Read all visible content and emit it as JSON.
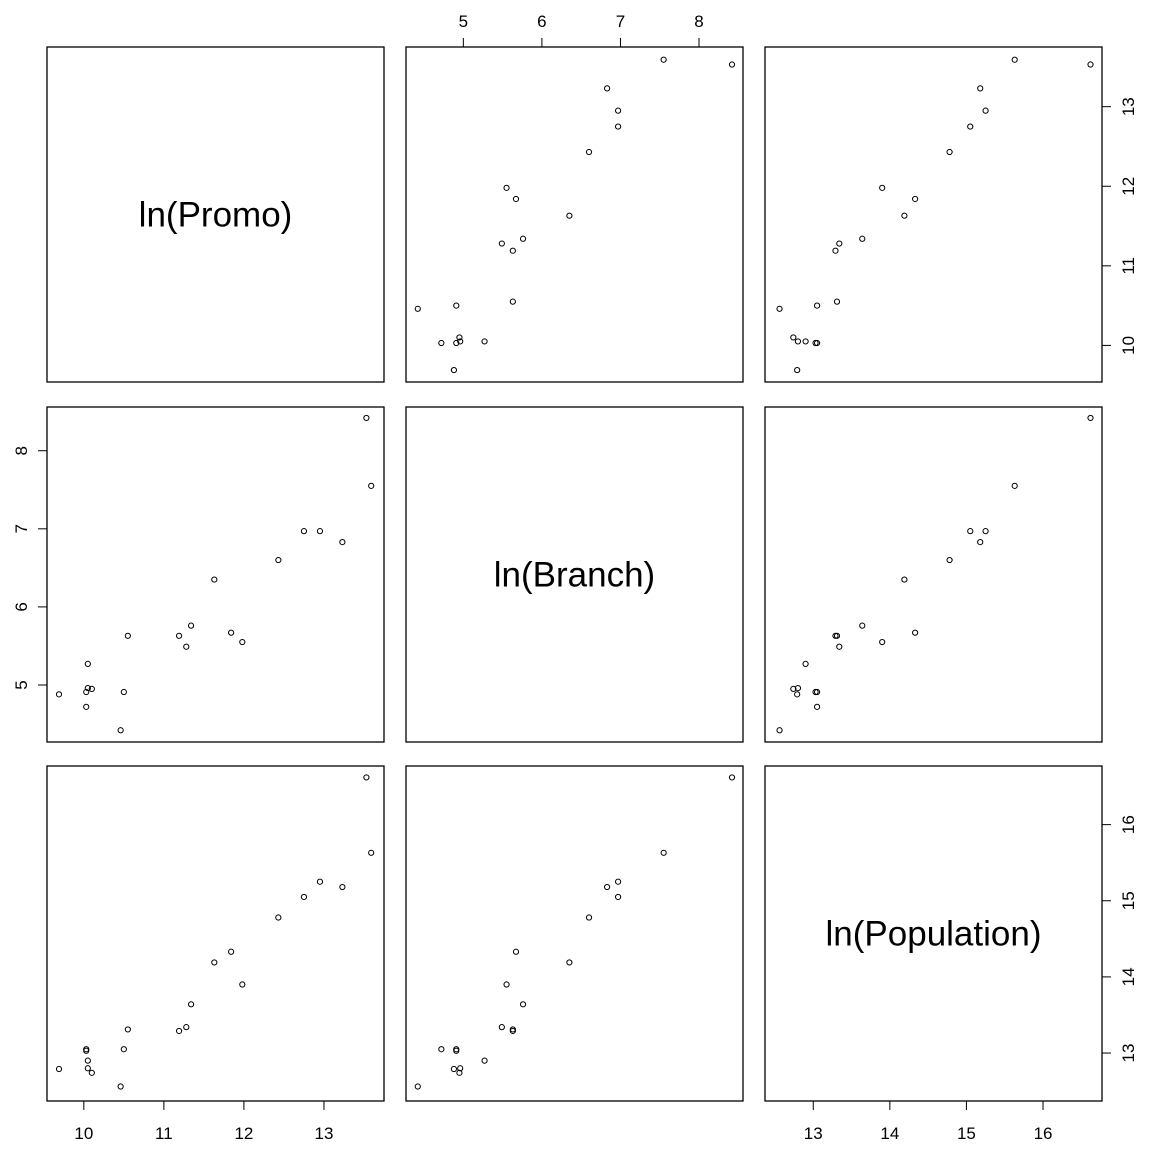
{
  "chart_data": {
    "type": "scatter_matrix",
    "variables": [
      {
        "name": "ln(Promo)",
        "lim": [
          9.54,
          13.75
        ],
        "ticks": [
          10,
          11,
          12,
          13
        ],
        "values": [
          9.69,
          10.03,
          10.03,
          10.05,
          10.05,
          10.1,
          10.46,
          10.5,
          10.55,
          11.19,
          11.28,
          11.34,
          11.63,
          11.84,
          11.98,
          12.43,
          12.75,
          12.95,
          13.23,
          13.53,
          13.59
        ]
      },
      {
        "name": "ln(Branch)",
        "lim": [
          4.27,
          8.56
        ],
        "ticks": [
          5,
          6,
          7,
          8
        ],
        "values": [
          4.88,
          4.72,
          4.91,
          5.27,
          4.96,
          4.95,
          4.42,
          4.91,
          5.63,
          5.63,
          5.49,
          5.76,
          6.35,
          5.67,
          5.55,
          6.6,
          6.97,
          6.97,
          6.83,
          8.42,
          7.55
        ]
      },
      {
        "name": "ln(Population)",
        "lim": [
          12.37,
          16.77
        ],
        "ticks": [
          13,
          14,
          15,
          16
        ],
        "values": [
          12.79,
          13.05,
          13.03,
          12.9,
          12.8,
          12.74,
          12.56,
          13.05,
          13.31,
          13.29,
          13.34,
          13.64,
          14.19,
          14.33,
          13.9,
          14.78,
          15.05,
          15.25,
          15.18,
          16.62,
          15.63
        ]
      }
    ]
  }
}
